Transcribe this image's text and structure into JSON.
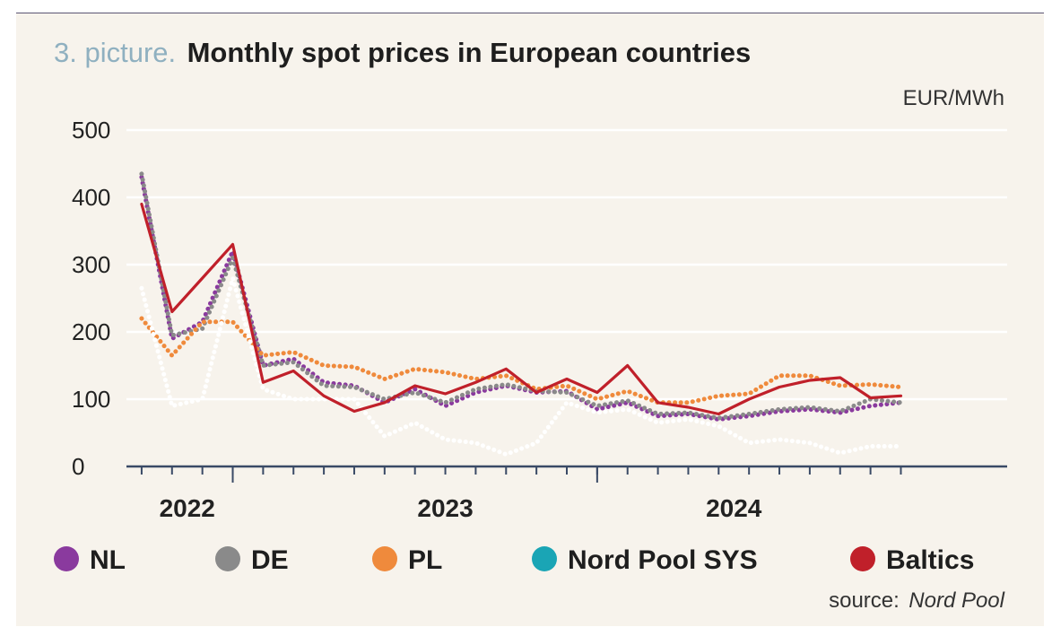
{
  "title": {
    "prefix": "3. picture.",
    "main": "Monthly spot prices in European countries"
  },
  "unit": "EUR/MWh",
  "source": {
    "label": "source:",
    "value": "Nord Pool"
  },
  "chart_data": {
    "type": "line",
    "ylim": [
      0,
      500
    ],
    "yticks": [
      "0",
      "100",
      "200",
      "300",
      "400",
      "500"
    ],
    "ytick_values": [
      0,
      100,
      200,
      300,
      400,
      500
    ],
    "xlim": [
      0,
      29
    ],
    "x_labels": [
      {
        "text": "2022",
        "at": 2.0
      },
      {
        "text": "2023",
        "at": 10.5
      },
      {
        "text": "2024",
        "at": 20.0
      }
    ],
    "year_boundaries": [
      3.5,
      15.5
    ],
    "grid": true,
    "legend_position": "bottom",
    "series": [
      {
        "name": "NL",
        "color": "#8a3a9e",
        "style": "dotted",
        "values": [
          430,
          190,
          215,
          320,
          150,
          160,
          125,
          120,
          95,
          115,
          90,
          110,
          120,
          110,
          112,
          85,
          95,
          75,
          78,
          70,
          75,
          82,
          85,
          80,
          90,
          95
        ]
      },
      {
        "name": "DE",
        "color": "#8a8a8a",
        "style": "dotted",
        "values": [
          435,
          195,
          205,
          310,
          150,
          155,
          120,
          118,
          100,
          110,
          95,
          115,
          122,
          112,
          110,
          90,
          98,
          78,
          80,
          72,
          78,
          85,
          88,
          82,
          100,
          95
        ]
      },
      {
        "name": "PL",
        "color": "#ef8a3c",
        "style": "dotted",
        "values": [
          220,
          165,
          215,
          215,
          165,
          170,
          150,
          148,
          130,
          145,
          140,
          130,
          135,
          115,
          120,
          100,
          112,
          95,
          95,
          105,
          108,
          135,
          135,
          120,
          122,
          118
        ]
      },
      {
        "name": "Nord Pool SYS",
        "color": "#ffffff",
        "style": "dotted",
        "values": [
          265,
          90,
          100,
          280,
          115,
          100,
          100,
          100,
          45,
          65,
          40,
          35,
          18,
          35,
          95,
          80,
          85,
          65,
          70,
          60,
          35,
          40,
          35,
          20,
          30,
          30
        ]
      },
      {
        "name": "Baltics",
        "color": "#c0202a",
        "style": "solid",
        "values": [
          390,
          230,
          280,
          330,
          125,
          142,
          105,
          82,
          95,
          120,
          108,
          125,
          145,
          110,
          130,
          110,
          150,
          95,
          88,
          78,
          100,
          118,
          128,
          132,
          102,
          105
        ]
      }
    ],
    "legend_dot_colors": [
      "#8a3a9e",
      "#8a8a8a",
      "#ef8a3c",
      "#1aa5b5",
      "#c0202a"
    ]
  }
}
